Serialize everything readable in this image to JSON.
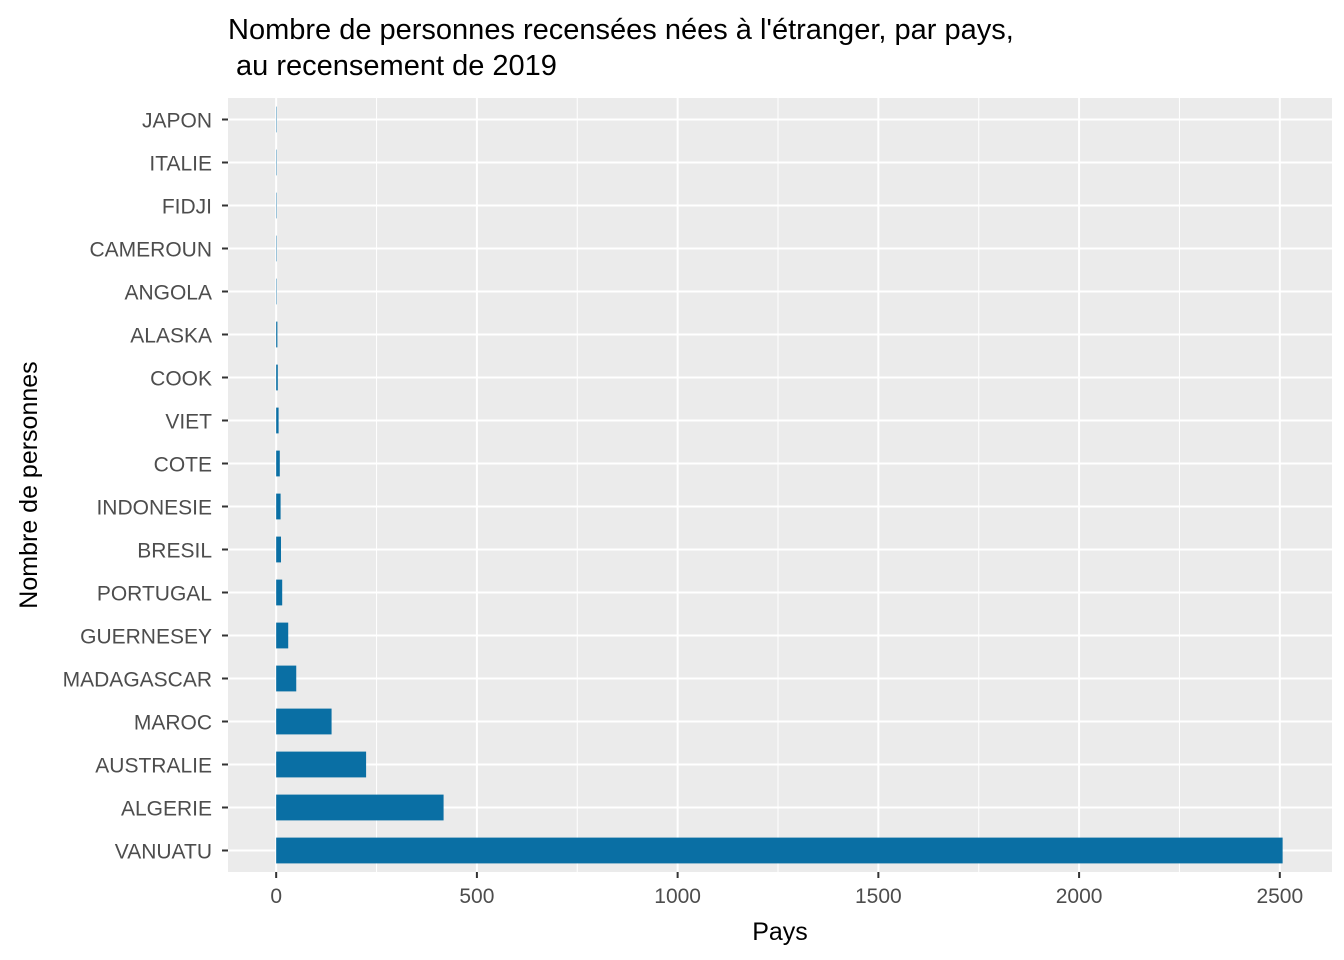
{
  "chart_data": {
    "type": "bar",
    "orientation": "horizontal",
    "title_line1": "Nombre de personnes recensées nées à l'étranger, par pays,",
    "title_line2": " au recensement de 2019",
    "xlabel": "Pays",
    "ylabel": "Nombre de personnes",
    "categories": [
      "VANUATU",
      "ALGERIE",
      "AUSTRALIE",
      "MAROC",
      "MADAGASCAR",
      "GUERNESEY",
      "PORTUGAL",
      "BRESIL",
      "INDONESIE",
      "COTE",
      "VIET",
      "COOK",
      "ALASKA",
      "ANGOLA",
      "CAMEROUN",
      "FIDJI",
      "ITALIE",
      "JAPON"
    ],
    "values": [
      2507,
      417,
      224,
      138,
      50,
      30,
      15,
      12,
      11,
      9,
      6,
      4,
      3,
      1,
      1,
      1,
      1,
      1
    ],
    "xlim": [
      -120,
      2630
    ],
    "xticks": [
      0,
      500,
      1000,
      1500,
      2000,
      2500
    ],
    "grid": true,
    "legend": "none",
    "colors": {
      "bar": "#0a6fa4",
      "panel": "#ebebeb",
      "grid": "#ffffff",
      "tick": "#333333"
    }
  }
}
